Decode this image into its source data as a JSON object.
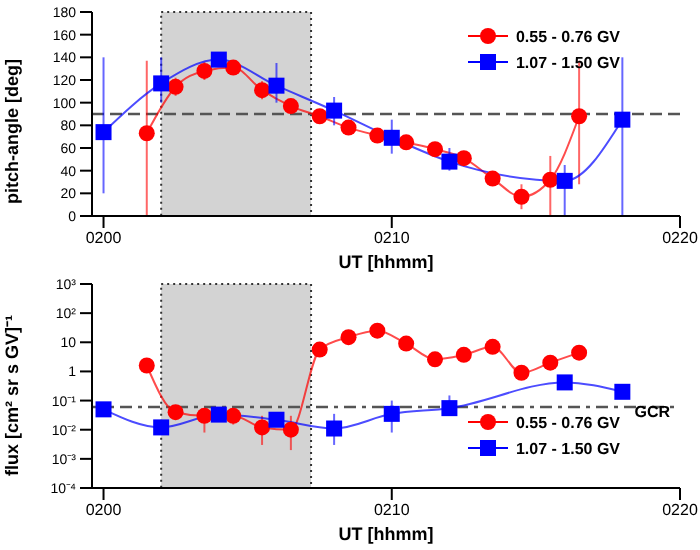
{
  "chart_data": [
    {
      "type": "line",
      "ylabel": "pitch-angle [deg]",
      "xlabel": "UT [hhmm]",
      "xlim": [
        199.6,
        220
      ],
      "xticks": [
        {
          "value": 200,
          "label": "0200"
        },
        {
          "value": 210,
          "label": "0210"
        },
        {
          "value": 220,
          "label": "0220"
        }
      ],
      "ylim": [
        0,
        180
      ],
      "yticks": [
        0,
        20,
        40,
        60,
        80,
        100,
        120,
        140,
        160,
        180
      ],
      "legend": "top right",
      "grid": false,
      "series": [
        {
          "name": "0.55 - 0.76 GV",
          "color": "#ff0000",
          "marker": "circle",
          "x": [
            201.5,
            202.5,
            203.5,
            204.5,
            205.5,
            206.5,
            207.5,
            208.5,
            209.5,
            210.5,
            211.5,
            212.5,
            213.5,
            214.5,
            215.5,
            216.5
          ],
          "values": [
            73,
            114,
            128,
            131,
            111,
            97,
            88,
            78,
            71,
            65,
            59,
            51,
            33,
            17,
            32,
            88
          ],
          "errors": [
            [
              0,
              137
            ],
            8,
            8,
            6,
            8,
            6,
            6,
            6,
            6,
            6,
            6,
            6,
            6,
            11,
            [
              0,
              53
            ],
            [
              28,
              137
            ]
          ]
        },
        {
          "name": "1.07 - 1.50 GV",
          "color": "#0000ff",
          "marker": "square",
          "x": [
            200,
            202,
            204,
            206,
            208,
            210,
            212,
            216,
            218
          ],
          "values": [
            74,
            117,
            138,
            115,
            93,
            69,
            48,
            31,
            85
          ],
          "errors": [
            [
              20,
              140
            ],
            [
              100,
              140
            ],
            5,
            [
              100,
              135
            ],
            [
              80,
              105
            ],
            [
              55,
              85
            ],
            [
              40,
              60
            ],
            [
              0,
              45
            ],
            [
              0,
              140
            ]
          ]
        }
      ],
      "bands": [
        {
          "axis": "x",
          "from": 202,
          "to": 207.2,
          "color": "#d3d3d3"
        }
      ],
      "ref_lines": [
        {
          "axis": "y",
          "value": 90,
          "line_style": "dashed",
          "color": "#555555"
        }
      ]
    },
    {
      "type": "line",
      "ylabel": "flux [cm² sr s GV]⁻¹",
      "xlabel": "UT [hhmm]",
      "log": "y",
      "xlim": [
        199.6,
        220
      ],
      "xticks": [
        {
          "value": 200,
          "label": "0200"
        },
        {
          "value": 210,
          "label": "0210"
        },
        {
          "value": 220,
          "label": "0220"
        }
      ],
      "ylim": [
        0.0001,
        1000
      ],
      "yticks": [
        {
          "value": 0.0001,
          "label": "10⁻⁴"
        },
        {
          "value": 0.001,
          "label": "10⁻³"
        },
        {
          "value": 0.01,
          "label": "10⁻²"
        },
        {
          "value": 0.1,
          "label": "10⁻¹"
        },
        1,
        10,
        {
          "value": 100,
          "label": "10²"
        },
        {
          "value": 1000,
          "label": "10³"
        }
      ],
      "legend": "bottom right",
      "grid": false,
      "series": [
        {
          "name": "0.55 - 0.76 GV",
          "color": "#ff0000",
          "marker": "circle",
          "x": [
            201.5,
            202.5,
            203.5,
            204.5,
            205.5,
            206.5,
            207.5,
            208.5,
            209.5,
            210.5,
            211.5,
            212.5,
            213.5,
            214.5,
            215.5,
            216.5
          ],
          "values": [
            1.6,
            0.04,
            0.03,
            0.03,
            0.012,
            0.01,
            5.6,
            15,
            25,
            9,
            2.6,
            3.7,
            7,
            0.9,
            2,
            4.4
          ],
          "errors": [
            null,
            null,
            [
              0.008,
              0.05
            ],
            [
              0.015,
              0.05
            ],
            [
              0.003,
              0.03
            ],
            [
              0.002,
              0.03
            ],
            null,
            null,
            null,
            null,
            null,
            null,
            null,
            null,
            null,
            null
          ]
        },
        {
          "name": "1.07 - 1.50 GV",
          "color": "#0000ff",
          "marker": "square",
          "x": [
            200,
            202,
            204,
            206,
            208,
            210,
            212,
            216,
            218
          ],
          "values": [
            0.05,
            0.012,
            0.033,
            0.022,
            0.011,
            0.035,
            0.055,
            0.42,
            0.2
          ],
          "errors": [
            null,
            null,
            [
              0.02,
              0.05
            ],
            null,
            [
              0.003,
              0.035
            ],
            [
              0.008,
              0.1
            ],
            [
              0.03,
              0.15
            ],
            null,
            [
              0.12,
              0.3
            ]
          ]
        }
      ],
      "bands": [
        {
          "axis": "x",
          "from": 202,
          "to": 207.2,
          "color": "#d3d3d3"
        }
      ],
      "ref_lines": [
        {
          "axis": "y",
          "value": 0.06,
          "label": "GCR",
          "line_style": "dashdot",
          "color": "#555555"
        }
      ]
    }
  ]
}
